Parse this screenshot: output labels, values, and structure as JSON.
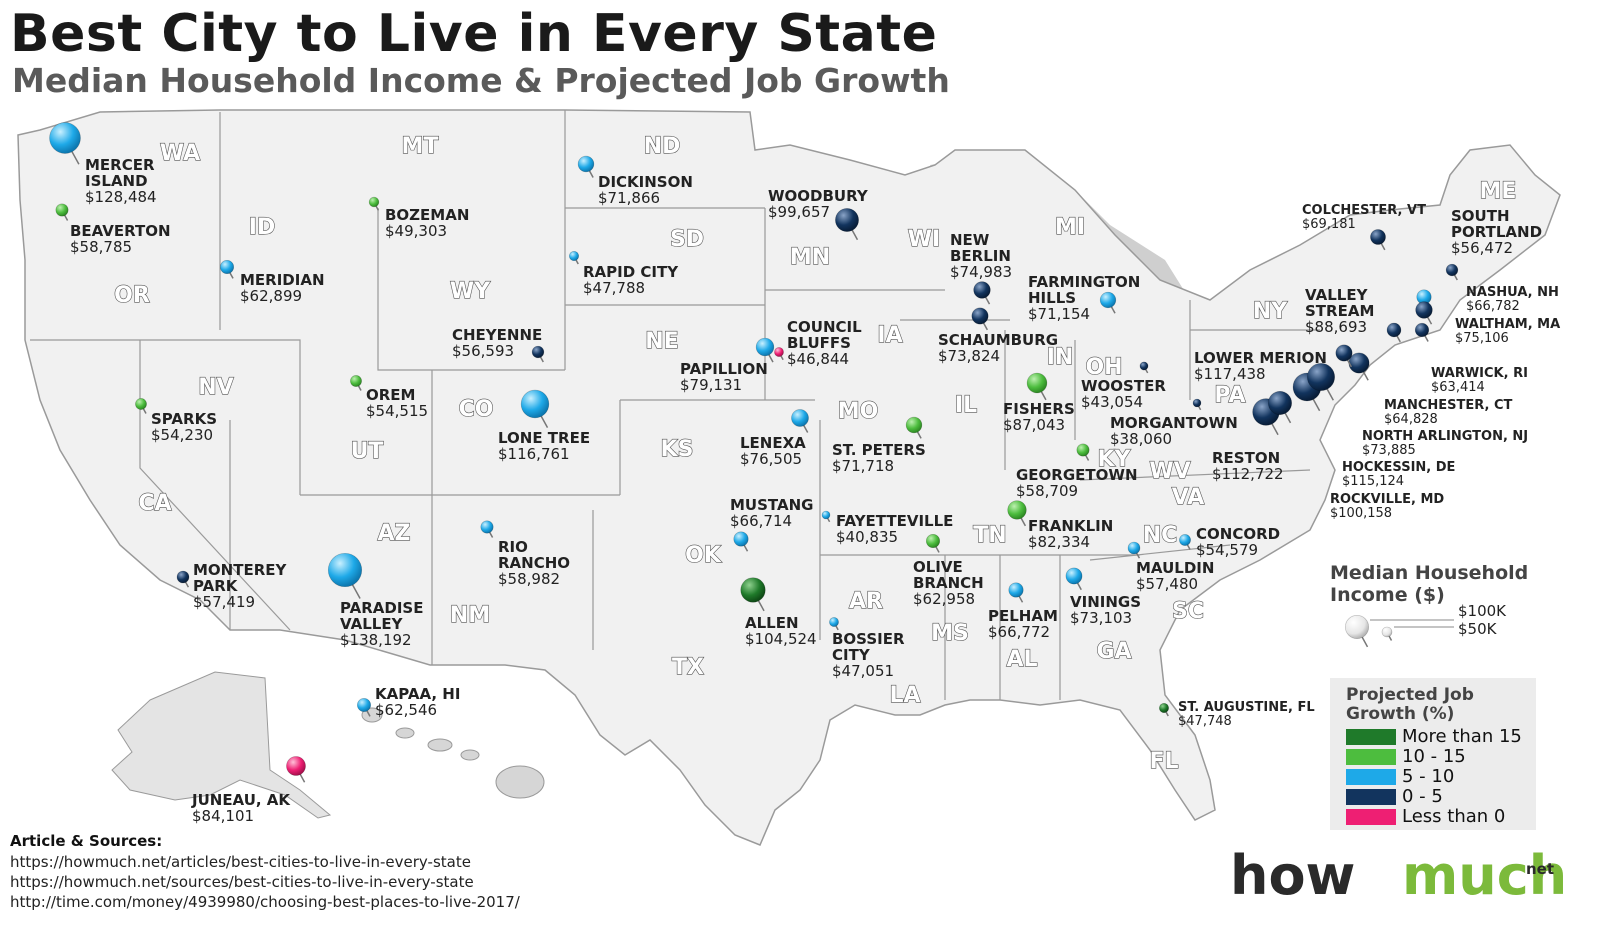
{
  "title": "Best City to Live in Every State",
  "subtitle": "Median Household Income & Projected Job Growth",
  "states": [
    "WA",
    "MT",
    "ND",
    "MN",
    "ME",
    "ID",
    "OR",
    "SD",
    "WI",
    "MI",
    "NY",
    "WY",
    "NE",
    "IA",
    "IN",
    "OH",
    "PA",
    "NV",
    "UT",
    "CO",
    "IL",
    "MO",
    "KS",
    "KY",
    "WV",
    "VA",
    "CA",
    "AZ",
    "TN",
    "OK",
    "NC",
    "NM",
    "AR",
    "SC",
    "GA",
    "AL",
    "MS",
    "TX",
    "LA",
    "FL"
  ],
  "cities": [
    {
      "name": "MERCER ISLAND",
      "income": "$128,484",
      "growth": "5 - 10"
    },
    {
      "name": "BEAVERTON",
      "income": "$58,785",
      "growth": "10 - 15"
    },
    {
      "name": "MERIDIAN",
      "income": "$62,899",
      "growth": "5 - 10"
    },
    {
      "name": "BOZEMAN",
      "income": "$49,303",
      "growth": "10 - 15"
    },
    {
      "name": "DICKINSON",
      "income": "$71,866",
      "growth": "5 - 10"
    },
    {
      "name": "RAPID CITY",
      "income": "$47,788",
      "growth": "5 - 10"
    },
    {
      "name": "WOODBURY",
      "income": "$99,657",
      "growth": "0 - 5"
    },
    {
      "name": "CHEYENNE",
      "income": "$56,593",
      "growth": "0 - 5"
    },
    {
      "name": "COUNCIL BLUFFS",
      "income": "$46,844",
      "growth": "Less than 0"
    },
    {
      "name": "PAPILLION",
      "income": "$79,131",
      "growth": "5 - 10"
    },
    {
      "name": "OREM",
      "income": "$54,515",
      "growth": "10 - 15"
    },
    {
      "name": "SPARKS",
      "income": "$54,230",
      "growth": "10 - 15"
    },
    {
      "name": "LONE TREE",
      "income": "$116,761",
      "growth": "5 - 10"
    },
    {
      "name": "LENEXA",
      "income": "$76,505",
      "growth": "5 - 10"
    },
    {
      "name": "ST. PETERS",
      "income": "$71,718",
      "growth": "10 - 15"
    },
    {
      "name": "NEW BERLIN",
      "income": "$74,983",
      "growth": "0 - 5"
    },
    {
      "name": "SCHAUMBURG",
      "income": "$73,824",
      "growth": "0 - 5"
    },
    {
      "name": "FARMINGTON HILLS",
      "income": "$71,154",
      "growth": "5 - 10"
    },
    {
      "name": "FISHERS",
      "income": "$87,043",
      "growth": "10 - 15"
    },
    {
      "name": "WOOSTER",
      "income": "$43,054",
      "growth": "0 - 5"
    },
    {
      "name": "MORGANTOWN",
      "income": "$38,060",
      "growth": "0 - 5"
    },
    {
      "name": "GEORGETOWN",
      "income": "$58,709",
      "growth": "10 - 15"
    },
    {
      "name": "RESTON",
      "income": "$112,722",
      "growth": "0 - 5"
    },
    {
      "name": "LOWER MERION",
      "income": "$117,438",
      "growth": "0 - 5"
    },
    {
      "name": "VALLEY STREAM",
      "income": "$88,693",
      "growth": "0 - 5"
    },
    {
      "name": "COLCHESTER, VT",
      "income": "$69,181",
      "growth": "0 - 5"
    },
    {
      "name": "SOUTH PORTLAND",
      "income": "$56,472",
      "growth": "0 - 5"
    },
    {
      "name": "NASHUA, NH",
      "income": "$66,782",
      "growth": "5 - 10"
    },
    {
      "name": "WALTHAM, MA",
      "income": "$75,106",
      "growth": "0 - 5"
    },
    {
      "name": "WARWICK, RI",
      "income": "$63,414",
      "growth": "0 - 5"
    },
    {
      "name": "MANCHESTER, CT",
      "income": "$64,828",
      "growth": "0 - 5"
    },
    {
      "name": "NORTH ARLINGTON, NJ",
      "income": "$73,885",
      "growth": "0 - 5"
    },
    {
      "name": "HOCKESSIN, DE",
      "income": "$115,124",
      "growth": "0 - 5"
    },
    {
      "name": "ROCKVILLE, MD",
      "income": "$100,158",
      "growth": "0 - 5"
    },
    {
      "name": "MONTEREY PARK",
      "income": "$57,419",
      "growth": "0 - 5"
    },
    {
      "name": "PARADISE VALLEY",
      "income": "$138,192",
      "growth": "5 - 10"
    },
    {
      "name": "RIO RANCHO",
      "income": "$58,982",
      "growth": "5 - 10"
    },
    {
      "name": "MUSTANG",
      "income": "$66,714",
      "growth": "5 - 10"
    },
    {
      "name": "FAYETTEVILLE",
      "income": "$40,835",
      "growth": "5 - 10"
    },
    {
      "name": "FRANKLIN",
      "income": "$82,334",
      "growth": "10 - 15"
    },
    {
      "name": "CONCORD",
      "income": "$54,579",
      "growth": "5 - 10"
    },
    {
      "name": "MAULDIN",
      "income": "$57,480",
      "growth": "5 - 10"
    },
    {
      "name": "OLIVE BRANCH",
      "income": "$62,958",
      "growth": "10 - 15"
    },
    {
      "name": "ALLEN",
      "income": "$104,524",
      "growth": "More than 15"
    },
    {
      "name": "BOSSIER CITY",
      "income": "$47,051",
      "growth": "5 - 10"
    },
    {
      "name": "PELHAM",
      "income": "$66,772",
      "growth": "5 - 10"
    },
    {
      "name": "VININGS",
      "income": "$73,103",
      "growth": "5 - 10"
    },
    {
      "name": "ST. AUGUSTINE, FL",
      "income": "$47,748",
      "growth": "More than 15"
    },
    {
      "name": "KAPAA, HI",
      "income": "$62,546",
      "growth": "5 - 10"
    },
    {
      "name": "JUNEAU, AK",
      "income": "$84,101",
      "growth": "Less than 0"
    }
  ],
  "legend_income": {
    "title": "Median Household Income ($)",
    "items": [
      {
        "label": "$100K",
        "income": 100000
      },
      {
        "label": "$50K",
        "income": 50000
      }
    ]
  },
  "legend_growth": {
    "title": "Projected Job Growth (%)",
    "items": [
      {
        "label": "More than 15",
        "color": "#1f7a2a"
      },
      {
        "label": "10 - 15",
        "color": "#4dbd3e"
      },
      {
        "label": "5 - 10",
        "color": "#1ea9e8"
      },
      {
        "label": "0 - 5",
        "color": "#12345e"
      },
      {
        "label": "Less than 0",
        "color": "#ee1f73"
      }
    ]
  },
  "sources": {
    "title": "Article & Sources:",
    "links": [
      "https://howmuch.net/articles/best-cities-to-live-in-every-state",
      "https://howmuch.net/sources/best-cities-to-live-in-every-state",
      "http://time.com/money/4939980/choosing-best-places-to-live-2017/"
    ]
  },
  "brand": {
    "how": "how",
    "much": "much",
    "net": "net"
  }
}
